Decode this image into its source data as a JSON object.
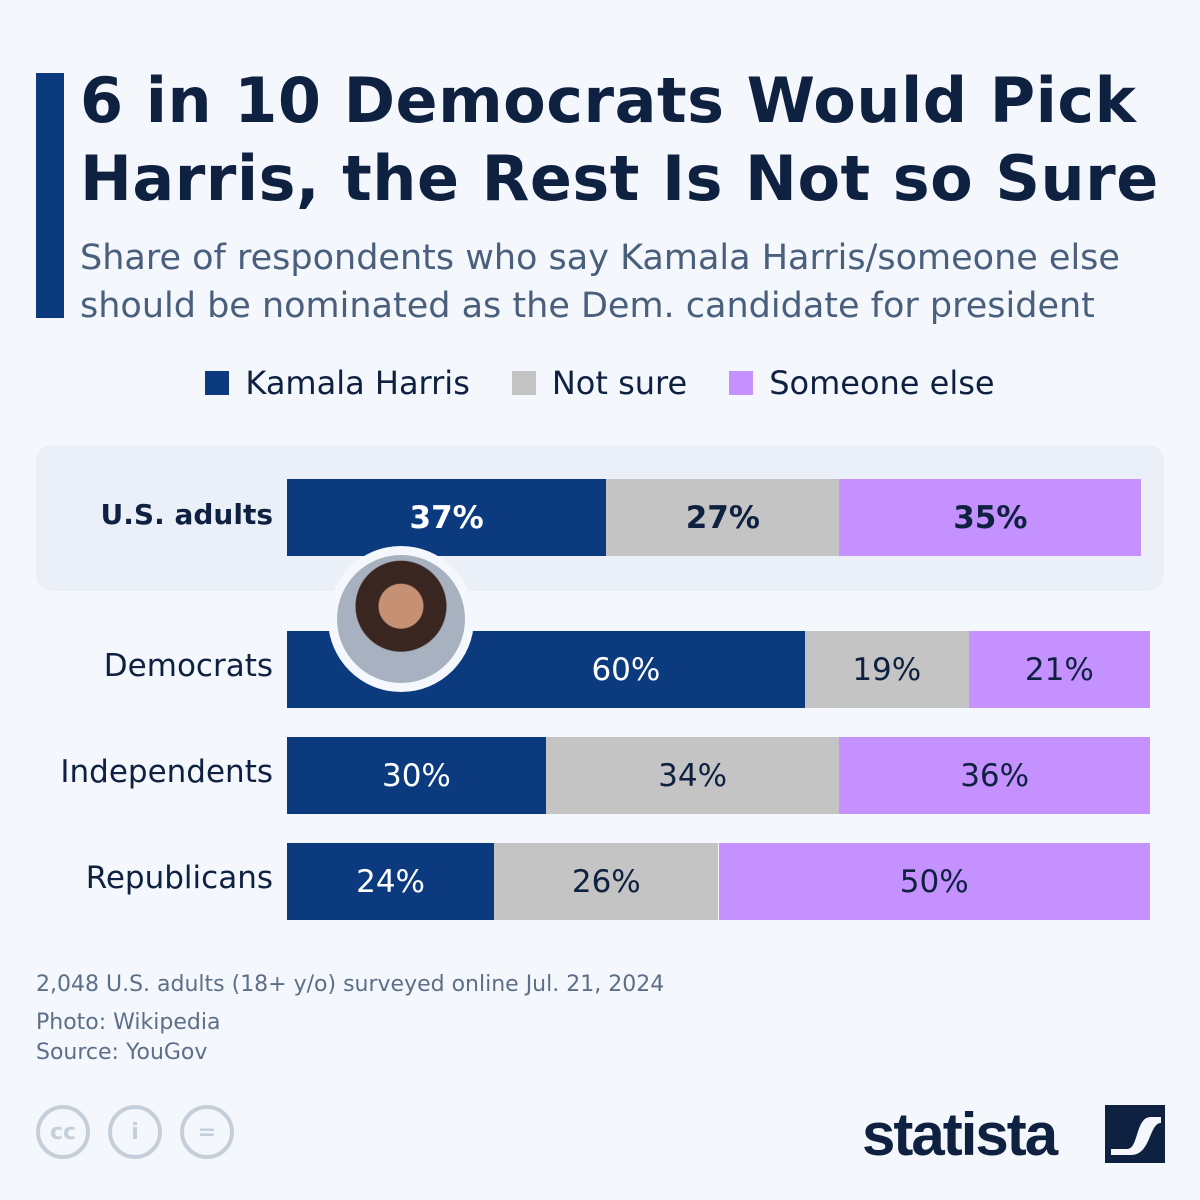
{
  "title": "6 in 10 Democrats Would Pick Harris, the Rest Is Not so Sure",
  "subtitle": "Share of respondents who say Kamala Harris/someone else should be nominated as the Dem. candidate for president",
  "chart_data": {
    "type": "bar",
    "orientation": "horizontal",
    "stacked": true,
    "categories": [
      "U.S. adults",
      "Democrats",
      "Independents",
      "Republicans"
    ],
    "series": [
      {
        "name": "Kamala Harris",
        "color": "#0b3a7e",
        "values": [
          37,
          60,
          30,
          24
        ],
        "labels": [
          "37%",
          "60%",
          "30%",
          "24%"
        ]
      },
      {
        "name": "Not sure",
        "color": "#c4c4c4",
        "values": [
          27,
          19,
          34,
          26
        ],
        "labels": [
          "27%",
          "19%",
          "34%",
          "26%"
        ]
      },
      {
        "name": "Someone else",
        "color": "#c491ff",
        "values": [
          35,
          21,
          36,
          50
        ],
        "labels": [
          "35%",
          "21%",
          "36%",
          "50%"
        ]
      }
    ],
    "xlim": [
      0,
      100
    ],
    "legend_position": "top",
    "highlighted_category": "U.S. adults",
    "grid": false
  },
  "footer": {
    "note": "2,048 U.S. adults (18+ y/o) surveyed online Jul. 21, 2024",
    "photo": "Photo: Wikipedia",
    "source": "Source: YouGov",
    "license_icons": [
      "cc-icon",
      "attribution-icon",
      "no-derivatives-icon"
    ],
    "license_text": [
      "cc",
      "i",
      "="
    ],
    "logo": "statista"
  }
}
